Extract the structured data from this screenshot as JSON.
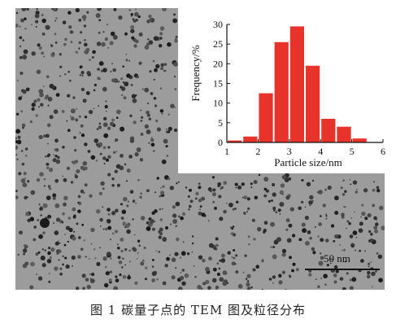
{
  "figure": {
    "scale_bar_label": "50 nm",
    "caption": "图 1   碳量子点的 TEM 图及粒径分布"
  },
  "chart_data": {
    "type": "bar",
    "x": [
      1.25,
      1.75,
      2.25,
      2.75,
      3.25,
      3.75,
      4.25,
      4.75,
      5.25,
      5.75
    ],
    "values": [
      0.5,
      1.5,
      12.5,
      25.5,
      29.5,
      19.5,
      6,
      4,
      1,
      0
    ],
    "xlabel": "Particle size/nm",
    "ylabel": "Frequency/%",
    "xlim": [
      1,
      6
    ],
    "ylim": [
      0,
      30
    ],
    "xticks": [
      1,
      2,
      3,
      4,
      5,
      6
    ],
    "yticks": [
      0,
      5,
      10,
      15,
      20,
      25,
      30
    ],
    "bar_color": "#e8332a",
    "grid": false
  }
}
